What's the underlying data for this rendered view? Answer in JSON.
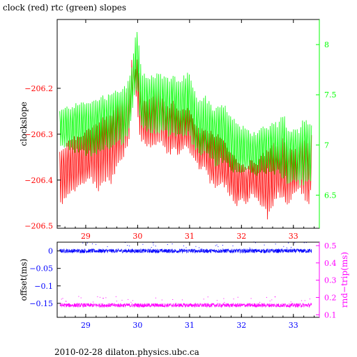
{
  "title": "clock (red) rtc (green) slopes",
  "footer": "2010-02-28  dilaton.physics.ubc.ca",
  "colors": {
    "red": "#ff0000",
    "green": "#00ff00",
    "blue": "#0000ff",
    "magenta": "#ff00ff",
    "axis": "#000000"
  },
  "chart_data": [
    {
      "type": "line",
      "title": "clock (red) rtc (green) slopes",
      "ylabel": "clockslope",
      "y2label": "",
      "xlim": [
        28.45,
        33.5
      ],
      "ylim": [
        -206.505,
        -206.05
      ],
      "y2lim": [
        6.17,
        8.25
      ],
      "xticks": [
        29,
        30,
        31,
        32,
        33
      ],
      "yticks": [
        -206.2,
        -206.3,
        -206.4,
        -206.5
      ],
      "yticklabels": [
        "−206.2",
        "−206.3",
        "−206.4",
        "−206.5"
      ],
      "y2ticks": [
        8,
        7.5,
        7,
        6.5
      ],
      "y2ticklabels": [
        "8",
        "7.5",
        "7",
        "6.5"
      ],
      "series": [
        {
          "axis": "left",
          "color": "#ff0000",
          "x": [
            28.5,
            28.6,
            28.7,
            28.8,
            28.9,
            29.0,
            29.1,
            29.2,
            29.3,
            29.4,
            29.5,
            29.6,
            29.7,
            29.8,
            29.85,
            29.9,
            29.95,
            30.0,
            30.05,
            30.1,
            30.2,
            30.3,
            30.4,
            30.5,
            30.6,
            30.7,
            30.8,
            30.9,
            31.0,
            31.1,
            31.2,
            31.3,
            31.4,
            31.5,
            31.6,
            31.7,
            31.8,
            31.9,
            32.0,
            32.1,
            32.2,
            32.3,
            32.4,
            32.5,
            32.6,
            32.7,
            32.8,
            32.9,
            33.0,
            33.1,
            33.2,
            33.3,
            33.35
          ],
          "high": [
            -206.33,
            -206.32,
            -206.31,
            -206.3,
            -206.3,
            -206.29,
            -206.28,
            -206.27,
            -206.26,
            -206.26,
            -206.25,
            -206.22,
            -206.21,
            -206.2,
            -206.18,
            -206.12,
            -206.16,
            -206.13,
            -206.2,
            -206.22,
            -206.22,
            -206.21,
            -206.2,
            -206.22,
            -206.24,
            -206.22,
            -206.25,
            -206.24,
            -206.24,
            -206.27,
            -206.29,
            -206.28,
            -206.29,
            -206.3,
            -206.3,
            -206.32,
            -206.34,
            -206.35,
            -206.36,
            -206.37,
            -206.35,
            -206.36,
            -206.34,
            -206.33,
            -206.31,
            -206.32,
            -206.3,
            -206.33,
            -206.33,
            -206.32,
            -206.3,
            -206.31,
            -206.3
          ],
          "low": [
            -206.46,
            -206.45,
            -206.44,
            -206.43,
            -206.42,
            -206.41,
            -206.4,
            -206.42,
            -206.43,
            -206.4,
            -206.41,
            -206.38,
            -206.36,
            -206.34,
            -206.3,
            -206.22,
            -206.2,
            -206.26,
            -206.32,
            -206.32,
            -206.33,
            -206.34,
            -206.32,
            -206.33,
            -206.35,
            -206.34,
            -206.35,
            -206.33,
            -206.34,
            -206.36,
            -206.38,
            -206.38,
            -206.41,
            -206.43,
            -206.41,
            -206.42,
            -206.44,
            -206.46,
            -206.44,
            -206.46,
            -206.43,
            -206.45,
            -206.46,
            -206.49,
            -206.47,
            -206.44,
            -206.45,
            -206.46,
            -206.44,
            -206.42,
            -206.44,
            -206.47,
            -206.4
          ]
        },
        {
          "axis": "right",
          "color": "#00ff00",
          "x": [
            28.5,
            28.6,
            28.7,
            28.8,
            28.9,
            29.0,
            29.1,
            29.2,
            29.3,
            29.4,
            29.5,
            29.6,
            29.7,
            29.8,
            29.85,
            29.9,
            29.95,
            30.0,
            30.05,
            30.1,
            30.2,
            30.3,
            30.4,
            30.5,
            30.6,
            30.7,
            30.8,
            30.9,
            31.0,
            31.1,
            31.2,
            31.3,
            31.4,
            31.5,
            31.6,
            31.7,
            31.8,
            31.9,
            32.0,
            32.1,
            32.2,
            32.3,
            32.4,
            32.5,
            32.6,
            32.7,
            32.8,
            32.9,
            33.0,
            33.1,
            33.2,
            33.3,
            33.35
          ],
          "high": [
            7.35,
            7.38,
            7.4,
            7.42,
            7.44,
            7.45,
            7.46,
            7.48,
            7.5,
            7.5,
            7.52,
            7.55,
            7.58,
            7.62,
            7.7,
            7.85,
            8.08,
            8.15,
            7.9,
            7.72,
            7.7,
            7.72,
            7.72,
            7.7,
            7.68,
            7.72,
            7.65,
            7.7,
            7.75,
            7.55,
            7.45,
            7.5,
            7.42,
            7.38,
            7.42,
            7.4,
            7.28,
            7.25,
            7.2,
            7.18,
            7.12,
            7.15,
            7.2,
            7.18,
            7.25,
            7.22,
            7.35,
            7.15,
            7.2,
            7.15,
            7.28,
            7.25,
            7.2
          ],
          "low": [
            6.98,
            6.95,
            6.93,
            6.92,
            6.9,
            6.88,
            6.88,
            6.9,
            6.92,
            6.95,
            6.95,
            6.98,
            7.0,
            7.05,
            7.15,
            7.35,
            7.5,
            7.5,
            7.2,
            7.15,
            7.12,
            7.1,
            7.12,
            7.1,
            7.08,
            7.1,
            7.05,
            7.08,
            7.05,
            6.95,
            6.88,
            6.9,
            6.82,
            6.78,
            6.8,
            6.78,
            6.7,
            6.68,
            6.7,
            6.72,
            6.7,
            6.68,
            6.7,
            6.72,
            6.68,
            6.7,
            6.65,
            6.6,
            6.62,
            6.6,
            6.58,
            6.62,
            6.55
          ]
        }
      ]
    },
    {
      "type": "scatter",
      "ylabel": "offset(ms)",
      "y2label": "rnd−trip(ms)",
      "xlim": [
        28.45,
        33.5
      ],
      "ylim": [
        -0.19,
        0.025
      ],
      "y2lim": [
        0.085,
        0.52
      ],
      "xticks": [
        29,
        30,
        31,
        32,
        33
      ],
      "yticks": [
        0,
        -0.05,
        -0.1,
        -0.15
      ],
      "yticklabels": [
        "0",
        "−0.05",
        "−0.1",
        "−0.15"
      ],
      "y2ticks": [
        0.5,
        0.4,
        0.3,
        0.2,
        0.1
      ],
      "y2ticklabels": [
        "0.5",
        "0.4",
        "0.3",
        "0.2",
        "0.1"
      ],
      "series": [
        {
          "axis": "left",
          "color": "#0000ff",
          "x_range": [
            28.5,
            33.35
          ],
          "center": 0.0,
          "spread": 0.006
        },
        {
          "axis": "right",
          "color": "#ff00ff",
          "x_range": [
            28.5,
            33.35
          ],
          "center": 0.155,
          "spread": 0.012
        }
      ]
    }
  ]
}
